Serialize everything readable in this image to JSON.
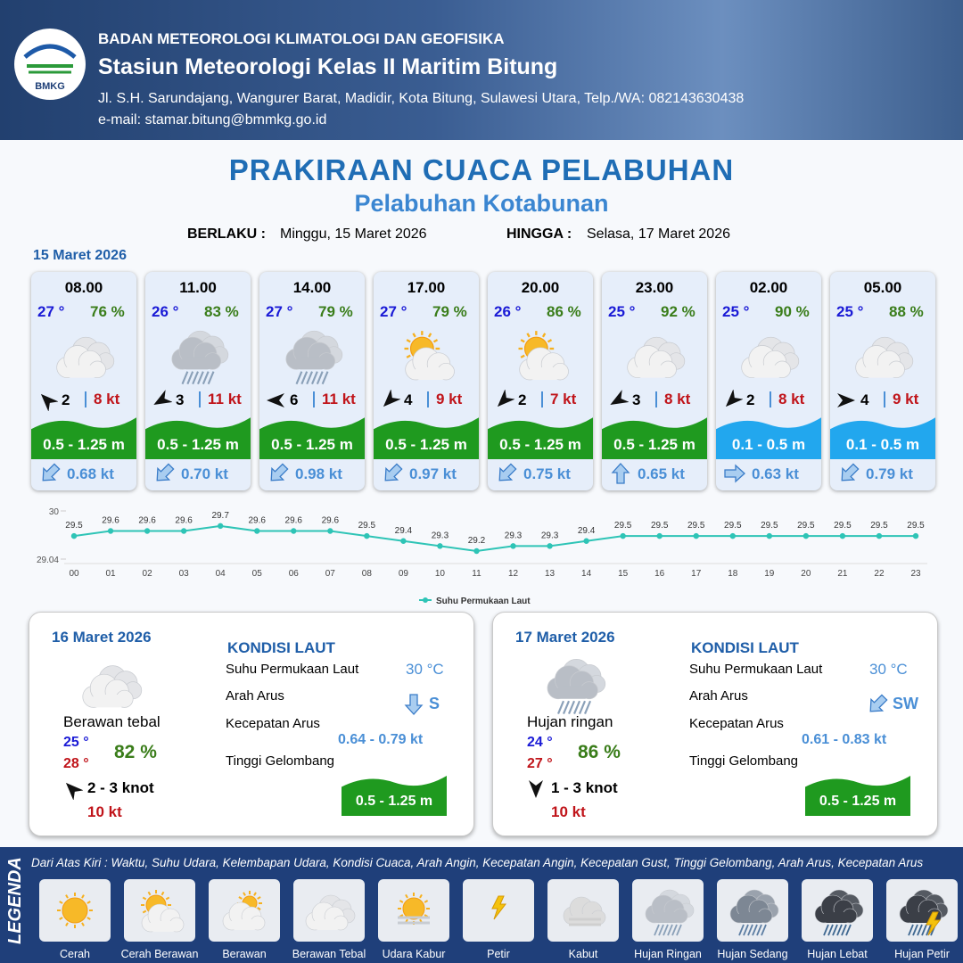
{
  "header": {
    "logo_text": "BMKG",
    "agency": "BADAN METEOROLOGI KLIMATOLOGI DAN GEOFISIKA",
    "station": "Stasiun Meteorologi Kelas II Maritim Bitung",
    "address": "Jl. S.H. Sarundajang, Wangurer Barat, Madidir, Kota Bitung, Sulawesi Utara, Telp./WA: 082143630438",
    "email": "e-mail: stamar.bitung@bmmkg.go.id"
  },
  "title": "PRAKIRAAN CUACA PELABUHAN",
  "subtitle": "Pelabuhan Kotabunan",
  "validity": {
    "from_label": "BERLAKU :",
    "from": "Minggu, 15 Maret 2026",
    "to_label": "HINGGA :",
    "to": "Selasa, 17 Maret 2026"
  },
  "day1": {
    "date": "15 Maret 2026",
    "slots": [
      {
        "time": "08.00",
        "temp": "27 °",
        "humidity": "76 %",
        "icon": 3,
        "wind_arrow_deg": 315,
        "wind": "2",
        "gust": "8 kt",
        "wave": "0.5 - 1.25 m",
        "wave_color": "#1f9a1f",
        "current_arrow_deg": 225,
        "current": "0.68 kt"
      },
      {
        "time": "11.00",
        "temp": "26 °",
        "humidity": "83 %",
        "icon": 7,
        "wind_arrow_deg": 240,
        "wind": "3",
        "gust": "11 kt",
        "wave": "0.5 - 1.25 m",
        "wave_color": "#1f9a1f",
        "current_arrow_deg": 225,
        "current": "0.70 kt"
      },
      {
        "time": "14.00",
        "temp": "27 °",
        "humidity": "79 %",
        "icon": 7,
        "wind_arrow_deg": 270,
        "wind": "6",
        "gust": "11 kt",
        "wave": "0.5 - 1.25 m",
        "wave_color": "#1f9a1f",
        "current_arrow_deg": 225,
        "current": "0.98 kt"
      },
      {
        "time": "17.00",
        "temp": "27 °",
        "humidity": "79 %",
        "icon": 1,
        "wind_arrow_deg": 225,
        "wind": "4",
        "gust": "9 kt",
        "wave": "0.5 - 1.25 m",
        "wave_color": "#1f9a1f",
        "current_arrow_deg": 225,
        "current": "0.97 kt"
      },
      {
        "time": "20.00",
        "temp": "26 °",
        "humidity": "86 %",
        "icon": 1,
        "wind_arrow_deg": 225,
        "wind": "2",
        "gust": "7 kt",
        "wave": "0.5 - 1.25 m",
        "wave_color": "#1f9a1f",
        "current_arrow_deg": 225,
        "current": "0.75 kt"
      },
      {
        "time": "23.00",
        "temp": "25 °",
        "humidity": "92 %",
        "icon": 3,
        "wind_arrow_deg": 240,
        "wind": "3",
        "gust": "8 kt",
        "wave": "0.5 - 1.25 m",
        "wave_color": "#1f9a1f",
        "current_arrow_deg": 0,
        "current": "0.65 kt"
      },
      {
        "time": "02.00",
        "temp": "25 °",
        "humidity": "90 %",
        "icon": 3,
        "wind_arrow_deg": 225,
        "wind": "2",
        "gust": "8 kt",
        "wave": "0.1 - 0.5 m",
        "wave_color": "#22a7ee",
        "current_arrow_deg": 90,
        "current": "0.63 kt"
      },
      {
        "time": "05.00",
        "temp": "25 °",
        "humidity": "88 %",
        "icon": 3,
        "wind_arrow_deg": 90,
        "wind": "4",
        "gust": "9 kt",
        "wave": "0.1 - 0.5 m",
        "wave_color": "#22a7ee",
        "current_arrow_deg": 225,
        "current": "0.79 kt"
      }
    ]
  },
  "chart_data": {
    "type": "line",
    "categories": [
      "00",
      "01",
      "02",
      "03",
      "04",
      "05",
      "06",
      "07",
      "08",
      "09",
      "10",
      "11",
      "12",
      "13",
      "14",
      "15",
      "16",
      "17",
      "18",
      "19",
      "20",
      "21",
      "22",
      "23"
    ],
    "series": [
      {
        "name": "Suhu Permukaan Laut",
        "color": "#2ec4b6",
        "values": [
          29.5,
          29.6,
          29.6,
          29.6,
          29.7,
          29.6,
          29.6,
          29.6,
          29.5,
          29.4,
          29.3,
          29.2,
          29.3,
          29.3,
          29.4,
          29.5,
          29.5,
          29.5,
          29.5,
          29.5,
          29.5,
          29.5,
          29.5,
          29.5
        ]
      }
    ],
    "ylim": [
      29.04,
      30
    ],
    "yticks": [
      29.04,
      30
    ],
    "legend": "bottom"
  },
  "days": [
    {
      "date": "16 Maret 2026",
      "icon": 3,
      "condition": "Berawan tebal",
      "temp_min": "25 °",
      "temp_max": "28 °",
      "humidity": "82 %",
      "wind_arrow_deg": 315,
      "wind": "2  - 3 knot",
      "gust": "10 kt",
      "sea": {
        "heading": "KONDISI LAUT",
        "current_arrow_deg": 180,
        "wave_color": "#1f9a1f",
        "rows": [
          {
            "label": "Suhu Permukaan Laut",
            "value": "30 °C"
          },
          {
            "label": "Arah Arus",
            "value": "S"
          },
          {
            "label": "Kecepatan Arus",
            "value": "0.64 - 0.79 kt"
          },
          {
            "label": "Tinggi Gelombang",
            "value": "0.5 - 1.25 m"
          }
        ]
      }
    },
    {
      "date": "17 Maret 2026",
      "icon": 7,
      "condition": "Hujan ringan",
      "temp_min": "24 °",
      "temp_max": "27 °",
      "humidity": "86 %",
      "wind_arrow_deg": 180,
      "wind": "1 - 3 knot",
      "gust": "10 kt",
      "sea": {
        "heading": "KONDISI LAUT",
        "current_arrow_deg": 225,
        "wave_color": "#1f9a1f",
        "rows": [
          {
            "label": "Suhu Permukaan Laut",
            "value": "30 °C"
          },
          {
            "label": "Arah Arus",
            "value": "SW"
          },
          {
            "label": "Kecepatan Arus",
            "value": "0.61 - 0.83 kt"
          },
          {
            "label": "Tinggi Gelombang",
            "value": "0.5 - 1.25 m"
          }
        ]
      }
    }
  ],
  "legend": {
    "title": "LEGENDA",
    "description": "Dari Atas Kiri : Waktu, Suhu Udara, Kelembapan Udara, Kondisi Cuaca, Arah Angin, Kecepatan Angin, Kecepatan Gust, Tinggi Gelombang, Arah Arus, Kecepatan Arus",
    "items": [
      "Cerah",
      "Cerah Berawan",
      "Berawan",
      "Berawan Tebal",
      "Udara Kabur",
      "Petir",
      "Kabut",
      "Hujan Ringan",
      "Hujan Sedang",
      "Hujan Lebat",
      "Hujan Petir"
    ]
  }
}
